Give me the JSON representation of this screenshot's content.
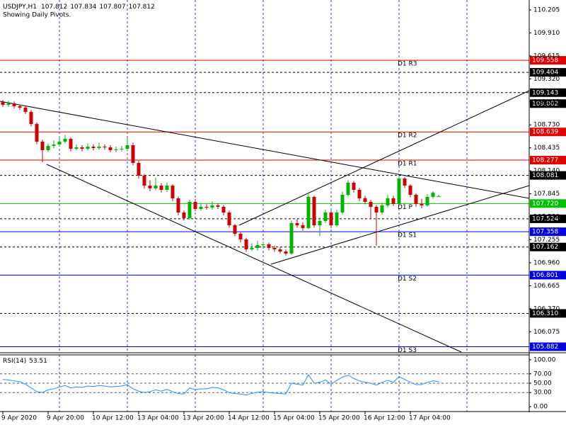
{
  "chart_data": {
    "type": "candlestick",
    "title": "USDJPY,H1",
    "subtitle": "Showing Daily Pivots.",
    "bull_color": "#00b400",
    "bear_color": "#d00000",
    "categories": [
      "9 Apr 2020",
      null,
      null,
      null,
      null,
      null,
      null,
      null,
      "9 Apr 20:00",
      null,
      null,
      null,
      null,
      null,
      null,
      null,
      "10 Apr 12:00",
      null,
      null,
      null,
      null,
      null,
      null,
      null,
      "13 Apr 04:00",
      null,
      null,
      null,
      null,
      null,
      null,
      null,
      "13 Apr 20:00",
      null,
      null,
      null,
      null,
      null,
      null,
      null,
      "14 Apr 12:00",
      null,
      null,
      null,
      null,
      null,
      null,
      null,
      "15 Apr 04:00",
      null,
      null,
      null,
      null,
      null,
      null,
      null,
      "15 Apr 20:00",
      null,
      null,
      null,
      null,
      null,
      null,
      null,
      "16 Apr 12:00",
      null,
      null,
      null,
      null,
      null,
      null,
      null,
      "17 Apr 04:00",
      null,
      null,
      null,
      null,
      null
    ],
    "open": [
      109.02,
      108.987,
      109.005,
      108.969,
      108.951,
      108.896,
      108.741,
      108.514,
      108.405,
      108.46,
      108.478,
      108.514,
      108.55,
      108.423,
      108.441,
      108.423,
      108.45,
      108.432,
      108.45,
      108.441,
      108.405,
      108.414,
      108.423,
      108.469,
      108.241,
      108.078,
      107.95,
      107.914,
      107.95,
      107.896,
      107.95,
      107.787,
      107.605,
      107.532,
      107.741,
      107.65,
      107.678,
      107.669,
      107.696,
      107.678,
      107.605,
      107.441,
      107.332,
      107.26,
      107.132,
      107.15,
      107.187,
      107.196,
      107.15,
      107.132,
      107.105,
      107.078,
      107.469,
      107.441,
      107.405,
      107.805,
      107.441,
      107.496,
      107.605,
      107.441,
      107.605,
      107.832,
      107.987,
      107.896,
      107.787,
      107.741,
      107.678,
      107.605,
      107.696,
      107.787,
      107.714,
      108.041,
      107.95,
      107.832,
      107.714,
      107.696,
      107.805,
      107.812
    ],
    "high": [
      109.05,
      109.04,
      109.03,
      108.99,
      108.98,
      108.92,
      108.76,
      108.54,
      108.49,
      108.53,
      108.58,
      108.6,
      108.57,
      108.48,
      108.47,
      108.49,
      108.48,
      108.5,
      108.48,
      108.47,
      108.45,
      108.46,
      108.57,
      108.5,
      108.27,
      108.1,
      108.02,
      108.05,
      107.98,
      107.99,
      107.97,
      107.81,
      107.63,
      107.77,
      107.78,
      107.72,
      107.71,
      107.75,
      107.72,
      107.7,
      107.63,
      107.46,
      107.35,
      107.28,
      107.21,
      107.24,
      107.23,
      107.22,
      107.18,
      107.16,
      107.13,
      107.5,
      107.52,
      107.48,
      107.84,
      107.82,
      107.54,
      107.64,
      107.63,
      107.64,
      107.87,
      108.02,
      108.01,
      107.92,
      107.82,
      107.77,
      107.7,
      107.73,
      107.83,
      107.82,
      108.08,
      108.06,
      107.97,
      107.85,
      107.78,
      107.84,
      107.88,
      107.834
    ],
    "low": [
      108.96,
      108.96,
      108.94,
      108.92,
      108.87,
      108.71,
      108.48,
      108.25,
      108.38,
      108.43,
      108.45,
      108.49,
      108.39,
      108.4,
      108.39,
      108.4,
      108.4,
      108.41,
      108.41,
      108.38,
      108.38,
      108.39,
      108.39,
      108.21,
      108.04,
      107.91,
      107.88,
      107.89,
      107.86,
      107.87,
      107.75,
      107.57,
      107.5,
      107.51,
      107.62,
      107.63,
      107.64,
      107.64,
      107.65,
      107.57,
      107.41,
      107.3,
      107.22,
      107.1,
      107.11,
      107.12,
      107.15,
      107.12,
      107.1,
      107.08,
      107.05,
      107.06,
      107.41,
      107.37,
      107.39,
      107.41,
      107.3,
      107.47,
      107.4,
      107.42,
      107.58,
      107.81,
      107.86,
      107.75,
      107.71,
      107.53,
      107.18,
      107.58,
      107.67,
      107.69,
      107.7,
      107.92,
      107.8,
      107.68,
      107.66,
      107.68,
      107.78,
      107.807
    ],
    "close": [
      108.987,
      109.005,
      108.969,
      108.951,
      108.896,
      108.741,
      108.514,
      108.405,
      108.46,
      108.478,
      108.514,
      108.55,
      108.423,
      108.441,
      108.423,
      108.45,
      108.432,
      108.45,
      108.441,
      108.405,
      108.414,
      108.423,
      108.469,
      108.241,
      108.078,
      107.95,
      107.914,
      107.95,
      107.896,
      107.95,
      107.787,
      107.605,
      107.532,
      107.741,
      107.65,
      107.678,
      107.669,
      107.696,
      107.678,
      107.605,
      107.441,
      107.332,
      107.26,
      107.132,
      107.15,
      107.187,
      107.196,
      107.15,
      107.132,
      107.105,
      107.078,
      107.469,
      107.441,
      107.405,
      107.805,
      107.441,
      107.496,
      107.605,
      107.441,
      107.605,
      107.832,
      107.987,
      107.896,
      107.787,
      107.741,
      107.678,
      107.605,
      107.696,
      107.787,
      107.714,
      108.041,
      107.95,
      107.832,
      107.714,
      107.696,
      107.805,
      107.86,
      107.812
    ],
    "ylim": [
      105.814,
      110.332
    ],
    "yticks": [
      110.205,
      {
        "value": 109.91,
        "label": "109.910"
      },
      109.615,
      {
        "value": 109.32,
        "label": "109.320"
      },
      109.025,
      {
        "value": 108.73,
        "label": "108.730"
      },
      108.435,
      {
        "value": 108.14,
        "label": "108.140"
      },
      107.845,
      {
        "value": 107.55,
        "label": "107.550"
      },
      107.255,
      {
        "value": 106.96,
        "label": "106.960"
      },
      106.665,
      {
        "value": 106.37,
        "label": "106.370"
      },
      106.075
    ],
    "hlines": [
      {
        "value": 109.558,
        "name": "D1 R3",
        "color": "#e00000",
        "style": "solid"
      },
      {
        "value": 109.404,
        "color": "#000000",
        "style": "dotted"
      },
      {
        "value": 109.143,
        "color": "#000000",
        "style": "dotted"
      },
      {
        "value": 109.002,
        "color": "#000000",
        "style": "none"
      },
      {
        "value": 108.639,
        "name": "D1 R2",
        "color": "#e00000",
        "style": "solid"
      },
      {
        "value": 108.277,
        "name": "D1 R1",
        "color": "#e00000",
        "style": "solid"
      },
      {
        "value": 108.081,
        "color": "#000000",
        "style": "dotted"
      },
      {
        "value": 107.72,
        "label": "107.720",
        "name": "D1 P",
        "color": "#00c000",
        "style": "solid"
      },
      {
        "value": 107.524,
        "color": "#000000",
        "style": "dotted"
      },
      {
        "value": 107.358,
        "name": "D1 S1",
        "color": "#0000e0",
        "style": "solid"
      },
      {
        "value": 107.162,
        "color": "#000000",
        "style": "dotted"
      },
      {
        "value": 106.801,
        "name": "D1 S2",
        "color": "#0000e0",
        "style": "solid"
      },
      {
        "value": 106.31,
        "label": "106.310",
        "color": "#000000",
        "style": "dotted"
      },
      {
        "value": 105.882,
        "name": "D1 S3",
        "color": "#0000e0",
        "style": "solid"
      }
    ],
    "rsi": {
      "name": "RSI(14)",
      "color": "#1e90ff",
      "values": [
        58,
        57,
        55,
        53,
        48,
        40,
        32,
        30,
        36,
        38,
        42,
        45,
        40,
        42,
        41,
        44,
        43,
        45,
        44,
        42,
        43,
        44,
        47,
        38,
        33,
        30,
        32,
        36,
        33,
        37,
        32,
        28,
        27,
        40,
        36,
        38,
        38,
        41,
        40,
        36,
        30,
        28,
        27,
        25,
        28,
        31,
        32,
        30,
        29,
        28,
        27,
        50,
        48,
        46,
        68,
        50,
        52,
        57,
        48,
        56,
        63,
        67,
        60,
        55,
        52,
        50,
        46,
        52,
        56,
        52,
        64,
        58,
        52,
        47,
        47,
        52,
        55,
        53.51
      ],
      "ylim": [
        -10.4,
        110.4
      ],
      "yticks": [
        {
          "value": 100,
          "label": "100.00"
        },
        {
          "value": 70,
          "label": "70.00"
        },
        {
          "value": 50,
          "label": "50.00"
        },
        {
          "value": 30,
          "label": "30.00"
        },
        {
          "value": 0,
          "label": "0.00"
        }
      ],
      "levels": [
        70,
        50,
        30
      ]
    }
  }
}
